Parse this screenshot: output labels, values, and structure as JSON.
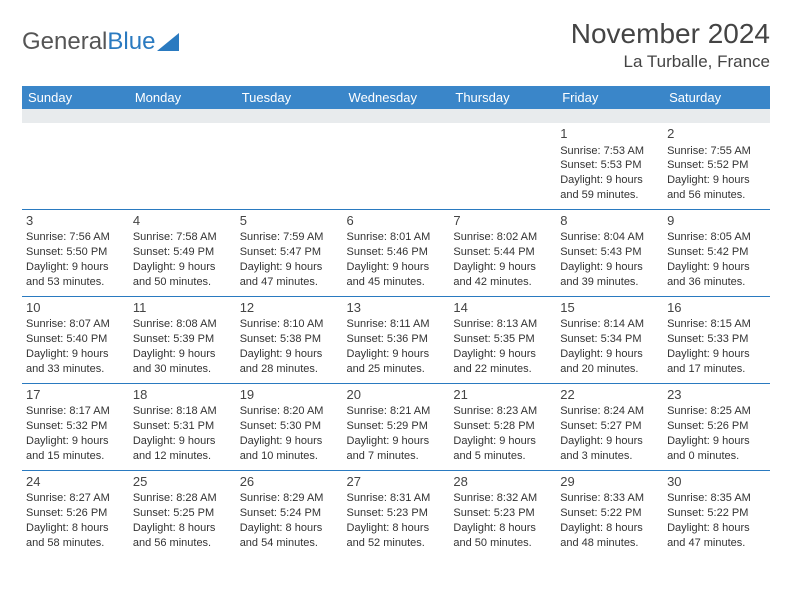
{
  "logo": {
    "text1": "General",
    "text2": "Blue"
  },
  "title": "November 2024",
  "subtitle": "La Turballe, France",
  "colors": {
    "header_bg": "#3a86c9",
    "header_fg": "#ffffff",
    "row_border": "#2a7ac0",
    "spacer_bg": "#e8ebed",
    "text": "#333333",
    "title": "#444444"
  },
  "day_headers": [
    "Sunday",
    "Monday",
    "Tuesday",
    "Wednesday",
    "Thursday",
    "Friday",
    "Saturday"
  ],
  "weeks": [
    [
      null,
      null,
      null,
      null,
      null,
      {
        "n": "1",
        "sr": "7:53 AM",
        "ss": "5:53 PM",
        "dl": "9 hours and 59 minutes."
      },
      {
        "n": "2",
        "sr": "7:55 AM",
        "ss": "5:52 PM",
        "dl": "9 hours and 56 minutes."
      }
    ],
    [
      {
        "n": "3",
        "sr": "7:56 AM",
        "ss": "5:50 PM",
        "dl": "9 hours and 53 minutes."
      },
      {
        "n": "4",
        "sr": "7:58 AM",
        "ss": "5:49 PM",
        "dl": "9 hours and 50 minutes."
      },
      {
        "n": "5",
        "sr": "7:59 AM",
        "ss": "5:47 PM",
        "dl": "9 hours and 47 minutes."
      },
      {
        "n": "6",
        "sr": "8:01 AM",
        "ss": "5:46 PM",
        "dl": "9 hours and 45 minutes."
      },
      {
        "n": "7",
        "sr": "8:02 AM",
        "ss": "5:44 PM",
        "dl": "9 hours and 42 minutes."
      },
      {
        "n": "8",
        "sr": "8:04 AM",
        "ss": "5:43 PM",
        "dl": "9 hours and 39 minutes."
      },
      {
        "n": "9",
        "sr": "8:05 AM",
        "ss": "5:42 PM",
        "dl": "9 hours and 36 minutes."
      }
    ],
    [
      {
        "n": "10",
        "sr": "8:07 AM",
        "ss": "5:40 PM",
        "dl": "9 hours and 33 minutes."
      },
      {
        "n": "11",
        "sr": "8:08 AM",
        "ss": "5:39 PM",
        "dl": "9 hours and 30 minutes."
      },
      {
        "n": "12",
        "sr": "8:10 AM",
        "ss": "5:38 PM",
        "dl": "9 hours and 28 minutes."
      },
      {
        "n": "13",
        "sr": "8:11 AM",
        "ss": "5:36 PM",
        "dl": "9 hours and 25 minutes."
      },
      {
        "n": "14",
        "sr": "8:13 AM",
        "ss": "5:35 PM",
        "dl": "9 hours and 22 minutes."
      },
      {
        "n": "15",
        "sr": "8:14 AM",
        "ss": "5:34 PM",
        "dl": "9 hours and 20 minutes."
      },
      {
        "n": "16",
        "sr": "8:15 AM",
        "ss": "5:33 PM",
        "dl": "9 hours and 17 minutes."
      }
    ],
    [
      {
        "n": "17",
        "sr": "8:17 AM",
        "ss": "5:32 PM",
        "dl": "9 hours and 15 minutes."
      },
      {
        "n": "18",
        "sr": "8:18 AM",
        "ss": "5:31 PM",
        "dl": "9 hours and 12 minutes."
      },
      {
        "n": "19",
        "sr": "8:20 AM",
        "ss": "5:30 PM",
        "dl": "9 hours and 10 minutes."
      },
      {
        "n": "20",
        "sr": "8:21 AM",
        "ss": "5:29 PM",
        "dl": "9 hours and 7 minutes."
      },
      {
        "n": "21",
        "sr": "8:23 AM",
        "ss": "5:28 PM",
        "dl": "9 hours and 5 minutes."
      },
      {
        "n": "22",
        "sr": "8:24 AM",
        "ss": "5:27 PM",
        "dl": "9 hours and 3 minutes."
      },
      {
        "n": "23",
        "sr": "8:25 AM",
        "ss": "5:26 PM",
        "dl": "9 hours and 0 minutes."
      }
    ],
    [
      {
        "n": "24",
        "sr": "8:27 AM",
        "ss": "5:26 PM",
        "dl": "8 hours and 58 minutes."
      },
      {
        "n": "25",
        "sr": "8:28 AM",
        "ss": "5:25 PM",
        "dl": "8 hours and 56 minutes."
      },
      {
        "n": "26",
        "sr": "8:29 AM",
        "ss": "5:24 PM",
        "dl": "8 hours and 54 minutes."
      },
      {
        "n": "27",
        "sr": "8:31 AM",
        "ss": "5:23 PM",
        "dl": "8 hours and 52 minutes."
      },
      {
        "n": "28",
        "sr": "8:32 AM",
        "ss": "5:23 PM",
        "dl": "8 hours and 50 minutes."
      },
      {
        "n": "29",
        "sr": "8:33 AM",
        "ss": "5:22 PM",
        "dl": "8 hours and 48 minutes."
      },
      {
        "n": "30",
        "sr": "8:35 AM",
        "ss": "5:22 PM",
        "dl": "8 hours and 47 minutes."
      }
    ]
  ],
  "labels": {
    "sunrise": "Sunrise: ",
    "sunset": "Sunset: ",
    "daylight": "Daylight: "
  }
}
